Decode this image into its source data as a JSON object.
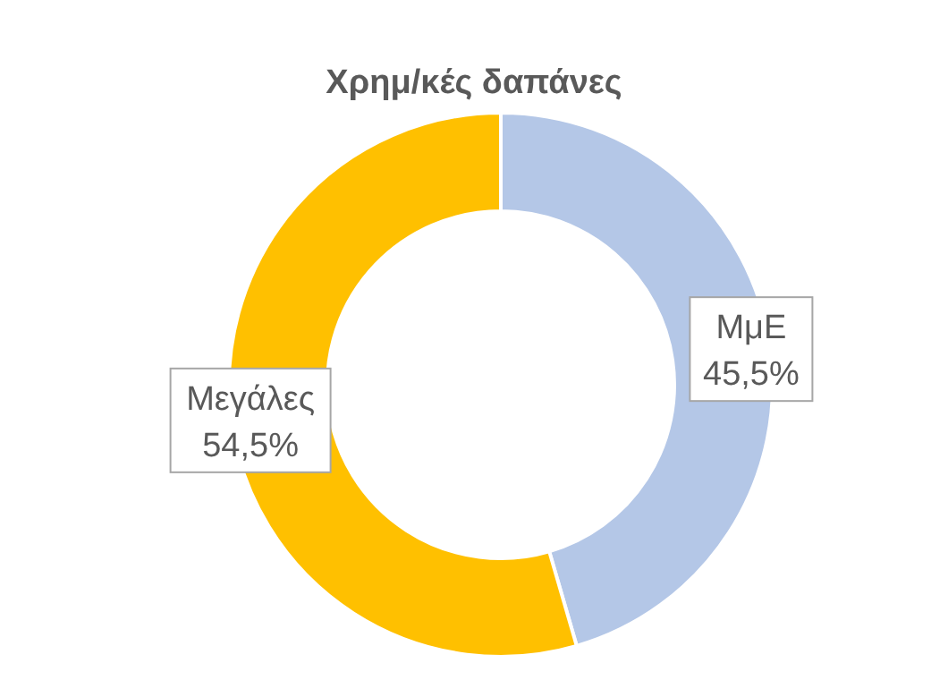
{
  "chart_data": {
    "type": "donut",
    "title": "Χρημ/κές δαπάνες",
    "categories": [
      "ΜμΕ",
      "Μεγάλες"
    ],
    "values": [
      45.5,
      54.5
    ],
    "colors": [
      "#b4c7e7",
      "#ffc000"
    ],
    "value_labels": [
      "45,5%",
      "54,5%"
    ]
  }
}
